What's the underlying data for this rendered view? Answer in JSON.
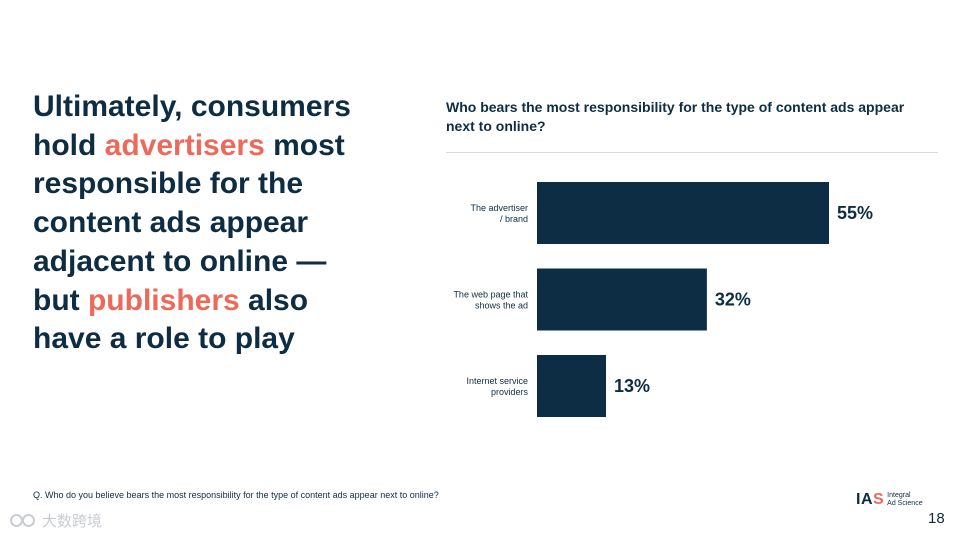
{
  "headline": {
    "line1": "Ultimately, consumers",
    "line2_pre": "hold ",
    "line2_hl": "advertisers",
    "line2_post": " most",
    "line3": "responsible for the",
    "line4": "content ads appear",
    "line5": "adjacent to online —",
    "line6_pre": "but ",
    "line6_hl": "publishers",
    "line6_post": " also",
    "line7": "have a role to play"
  },
  "colors": {
    "navy": "#0e2d43",
    "accent": "#ed6a5a",
    "bar": "#0d2d45"
  },
  "chart_data": {
    "type": "bar",
    "orientation": "horizontal",
    "title": "Who bears the most responsibility for the type of content ads appear next to online?",
    "categories": [
      [
        "The advertiser",
        "/ brand"
      ],
      [
        "The web page that",
        "shows the ad"
      ],
      [
        "Internet service",
        "providers"
      ]
    ],
    "values": [
      55,
      32,
      13
    ],
    "value_labels": [
      "55%",
      "32%",
      "13%"
    ],
    "unit": "%",
    "xlim": [
      0,
      55
    ],
    "grid": false,
    "legend": "none"
  },
  "footnote": "Q. Who do you believe bears the most responsibility for the type of content ads appear next to online?",
  "logo": {
    "mark_pre": "IA",
    "mark_s": "S",
    "text_line1": "Integral",
    "text_line2": "Ad Science"
  },
  "watermark": "大数跨境",
  "page_number": "18"
}
